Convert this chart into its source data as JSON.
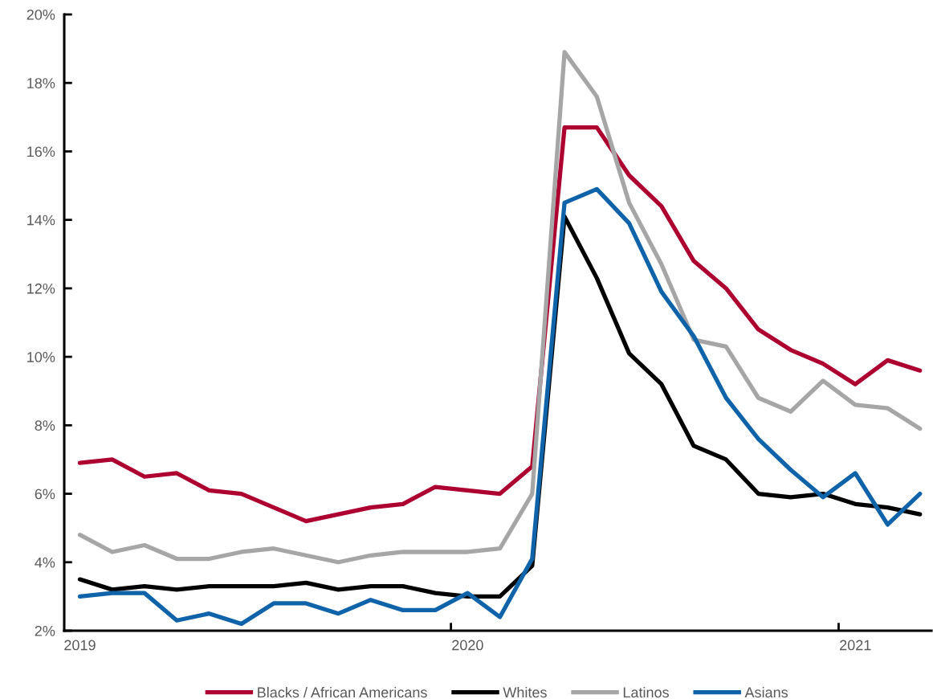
{
  "chart_data": {
    "type": "line",
    "x": [
      "2019-01",
      "2019-02",
      "2019-03",
      "2019-04",
      "2019-05",
      "2019-06",
      "2019-07",
      "2019-08",
      "2019-09",
      "2019-10",
      "2019-11",
      "2019-12",
      "2020-01",
      "2020-02",
      "2020-03",
      "2020-04",
      "2020-05",
      "2020-06",
      "2020-07",
      "2020-08",
      "2020-09",
      "2020-10",
      "2020-11",
      "2020-12",
      "2021-01",
      "2021-02",
      "2021-03"
    ],
    "series": [
      {
        "name": "Blacks / African Americans",
        "color": "#ae0030",
        "values": [
          6.9,
          7.0,
          6.5,
          6.6,
          6.1,
          6.0,
          5.6,
          5.2,
          5.4,
          5.6,
          5.7,
          6.2,
          6.1,
          6.0,
          6.8,
          16.7,
          16.7,
          15.3,
          14.4,
          12.8,
          12.0,
          10.8,
          10.2,
          9.8,
          9.2,
          9.9,
          9.6
        ]
      },
      {
        "name": "Whites",
        "color": "#000000",
        "values": [
          3.5,
          3.2,
          3.3,
          3.2,
          3.3,
          3.3,
          3.3,
          3.4,
          3.2,
          3.3,
          3.3,
          3.1,
          3.0,
          3.0,
          3.9,
          14.1,
          12.3,
          10.1,
          9.2,
          7.4,
          7.0,
          6.0,
          5.9,
          6.0,
          5.7,
          5.6,
          5.4
        ]
      },
      {
        "name": "Latinos",
        "color": "#a6a6a6",
        "values": [
          4.8,
          4.3,
          4.5,
          4.1,
          4.1,
          4.3,
          4.4,
          4.2,
          4.0,
          4.2,
          4.3,
          4.3,
          4.3,
          4.4,
          6.0,
          18.9,
          17.6,
          14.5,
          12.7,
          10.5,
          10.3,
          8.8,
          8.4,
          9.3,
          8.6,
          8.5,
          7.9
        ]
      },
      {
        "name": "Asians",
        "color": "#0f63a8",
        "values": [
          3.0,
          3.1,
          3.1,
          2.3,
          2.5,
          2.2,
          2.8,
          2.8,
          2.5,
          2.9,
          2.6,
          2.6,
          3.1,
          2.4,
          4.1,
          14.5,
          14.9,
          13.9,
          11.9,
          10.6,
          8.8,
          7.6,
          6.7,
          5.9,
          6.6,
          5.1,
          6.0
        ]
      }
    ],
    "xlim": [
      "2018-12-17",
      "2021-03-12"
    ],
    "xticks": [
      {
        "value": "2019-01",
        "label": "2019"
      },
      {
        "value": "2019-12-16",
        "label": null
      },
      {
        "value": "2020-01",
        "label": "2020"
      },
      {
        "value": "2020-12-16",
        "label": null
      },
      {
        "value": "2021-01",
        "label": "2021"
      }
    ],
    "ylim": [
      2,
      20
    ],
    "yticks": [
      {
        "value": 2,
        "label": "2%"
      },
      {
        "value": 4,
        "label": "4%"
      },
      {
        "value": 6,
        "label": "6%"
      },
      {
        "value": 8,
        "label": "8%"
      },
      {
        "value": 10,
        "label": "10%"
      },
      {
        "value": 12,
        "label": "12%"
      },
      {
        "value": 14,
        "label": "14%"
      },
      {
        "value": 16,
        "label": "16%"
      },
      {
        "value": 18,
        "label": "18%"
      },
      {
        "value": 20,
        "label": "20%"
      }
    ],
    "grid": false,
    "legend": "bottom",
    "marker": "none",
    "line_style": "solid"
  }
}
